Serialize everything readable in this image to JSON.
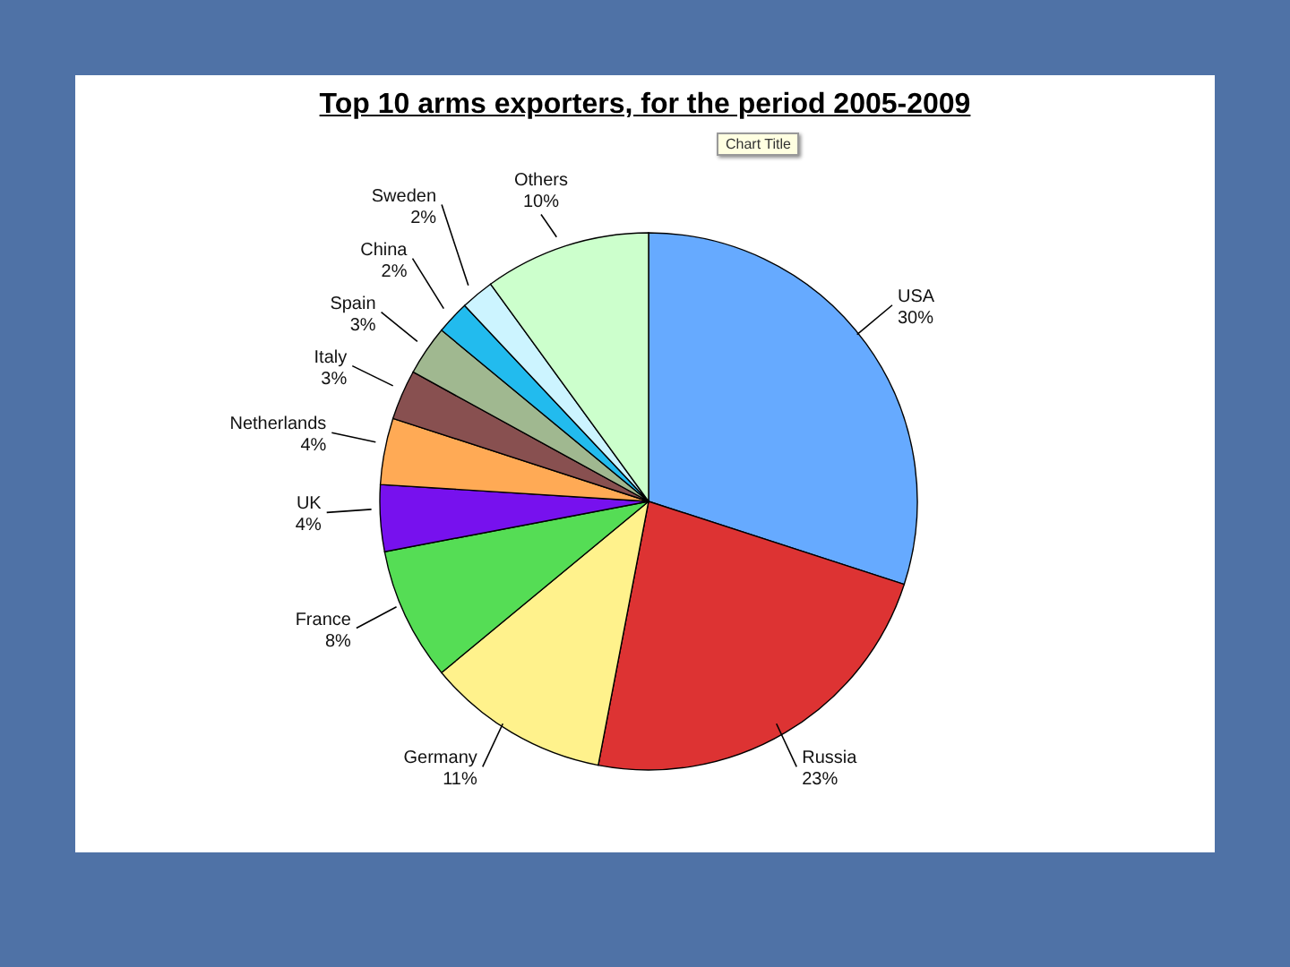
{
  "chart_data": {
    "type": "pie",
    "title": "Top 10 arms exporters, for the period 2005-2009",
    "categories": [
      "USA",
      "Russia",
      "Germany",
      "France",
      "UK",
      "Netherlands",
      "Italy",
      "Spain",
      "China",
      "Sweden",
      "Others"
    ],
    "values": [
      30,
      23,
      11,
      8,
      4,
      4,
      3,
      3,
      2,
      2,
      10
    ],
    "value_labels": [
      "30%",
      "23%",
      "11%",
      "8%",
      "4%",
      "4%",
      "3%",
      "3%",
      "2%",
      "2%",
      "10%"
    ],
    "colors": [
      "#66aaff",
      "#dd3333",
      "#fff28c",
      "#55dd55",
      "#7711ee",
      "#ffaa55",
      "#885050",
      "#a0b890",
      "#22bbee",
      "#ccf4ff",
      "#ccffcc"
    ],
    "annotations": [
      "Chart Title"
    ]
  }
}
